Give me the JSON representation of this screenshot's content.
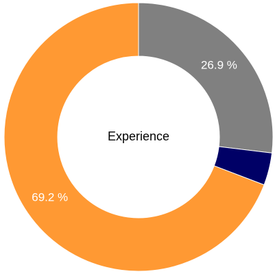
{
  "chart_data": {
    "type": "donut",
    "title": "Experience",
    "values": [
      26.9,
      3.9,
      69.2
    ],
    "value_labels": [
      "26.9 %",
      null,
      "69.2 %"
    ],
    "colors": [
      "#808080",
      "#000066",
      "#ff9933"
    ]
  }
}
